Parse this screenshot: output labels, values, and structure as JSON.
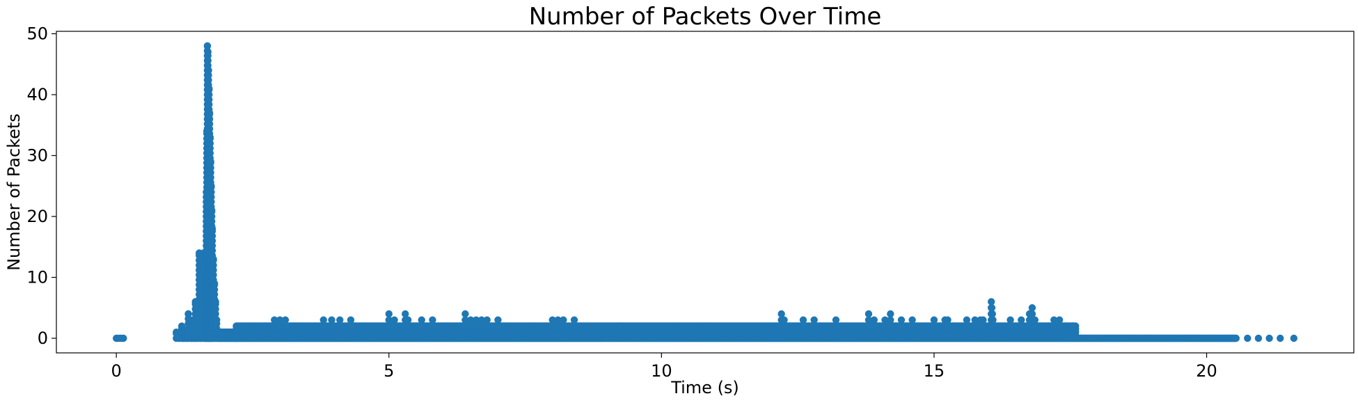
{
  "chart_data": {
    "type": "scatter",
    "title": "Number of Packets Over Time",
    "xlabel": "Time (s)",
    "ylabel": "Number of Packets",
    "xlim": [
      -1.1,
      22.7
    ],
    "ylim": [
      -2.4,
      50.4
    ],
    "xticks": [
      0,
      5,
      10,
      15,
      20
    ],
    "yticks": [
      0,
      10,
      20,
      30,
      40,
      50
    ],
    "grid": false,
    "color": "#1f77b4",
    "series": [
      {
        "start_points": [
          [
            0.0,
            0
          ],
          [
            0.03,
            0
          ],
          [
            0.07,
            0
          ],
          [
            0.1,
            0
          ],
          [
            0.13,
            0
          ]
        ],
        "spike_points": [
          [
            1.1,
            1
          ],
          [
            1.15,
            0
          ],
          [
            1.2,
            2
          ],
          [
            1.22,
            0
          ],
          [
            1.25,
            0
          ],
          [
            1.28,
            1
          ],
          [
            1.3,
            0
          ],
          [
            1.32,
            4
          ],
          [
            1.35,
            2
          ],
          [
            1.38,
            0
          ],
          [
            1.4,
            3
          ],
          [
            1.43,
            0
          ],
          [
            1.45,
            6
          ],
          [
            1.47,
            0
          ],
          [
            1.5,
            5
          ],
          [
            1.52,
            14
          ],
          [
            1.55,
            0
          ],
          [
            1.57,
            12
          ],
          [
            1.6,
            14
          ],
          [
            1.62,
            10
          ],
          [
            1.63,
            0
          ],
          [
            1.65,
            24
          ],
          [
            1.66,
            34
          ],
          [
            1.67,
            48
          ],
          [
            1.68,
            47
          ],
          [
            1.69,
            44
          ],
          [
            1.7,
            41
          ],
          [
            1.71,
            37
          ],
          [
            1.72,
            33
          ],
          [
            1.73,
            29
          ],
          [
            1.74,
            25
          ],
          [
            1.75,
            21
          ],
          [
            1.76,
            18
          ],
          [
            1.78,
            13
          ],
          [
            1.8,
            9
          ],
          [
            1.82,
            6
          ],
          [
            1.84,
            3
          ],
          [
            1.86,
            1
          ],
          [
            1.88,
            0
          ]
        ],
        "band_segments": [
          {
            "x_start": 1.9,
            "x_end": 2.2,
            "y_min": 0,
            "y_max": 1
          },
          {
            "x_start": 2.2,
            "x_end": 17.6,
            "y_min": 0,
            "y_max": 2
          },
          {
            "x_start": 17.6,
            "x_end": 20.55,
            "y_min": 0,
            "y_max": 0
          }
        ],
        "outliers": [
          [
            2.9,
            3
          ],
          [
            3.0,
            3
          ],
          [
            3.1,
            3
          ],
          [
            3.8,
            3
          ],
          [
            3.95,
            3
          ],
          [
            4.1,
            3
          ],
          [
            4.3,
            3
          ],
          [
            5.0,
            4
          ],
          [
            5.1,
            3
          ],
          [
            5.3,
            4
          ],
          [
            5.35,
            3
          ],
          [
            5.6,
            3
          ],
          [
            5.8,
            3
          ],
          [
            6.4,
            4
          ],
          [
            6.5,
            3
          ],
          [
            6.6,
            3
          ],
          [
            6.7,
            3
          ],
          [
            6.8,
            3
          ],
          [
            7.0,
            3
          ],
          [
            8.0,
            3
          ],
          [
            8.1,
            3
          ],
          [
            8.2,
            3
          ],
          [
            8.4,
            3
          ],
          [
            12.2,
            4
          ],
          [
            12.25,
            3
          ],
          [
            12.6,
            3
          ],
          [
            12.8,
            3
          ],
          [
            13.2,
            3
          ],
          [
            13.8,
            4
          ],
          [
            13.9,
            3
          ],
          [
            14.1,
            3
          ],
          [
            14.2,
            4
          ],
          [
            14.4,
            3
          ],
          [
            14.6,
            3
          ],
          [
            15.0,
            3
          ],
          [
            15.2,
            3
          ],
          [
            15.25,
            3
          ],
          [
            15.6,
            3
          ],
          [
            15.75,
            3
          ],
          [
            15.85,
            3
          ],
          [
            15.9,
            3
          ],
          [
            16.05,
            6
          ],
          [
            16.06,
            5
          ],
          [
            16.07,
            4
          ],
          [
            16.08,
            3
          ],
          [
            16.4,
            3
          ],
          [
            16.6,
            3
          ],
          [
            16.75,
            4
          ],
          [
            16.8,
            5
          ],
          [
            16.85,
            3
          ],
          [
            17.2,
            3
          ],
          [
            17.3,
            3
          ],
          [
            17.55,
            2
          ]
        ],
        "tail_points": [
          [
            20.75,
            0
          ],
          [
            20.95,
            0
          ],
          [
            21.15,
            0
          ],
          [
            21.35,
            0
          ],
          [
            21.6,
            0
          ]
        ]
      }
    ]
  }
}
